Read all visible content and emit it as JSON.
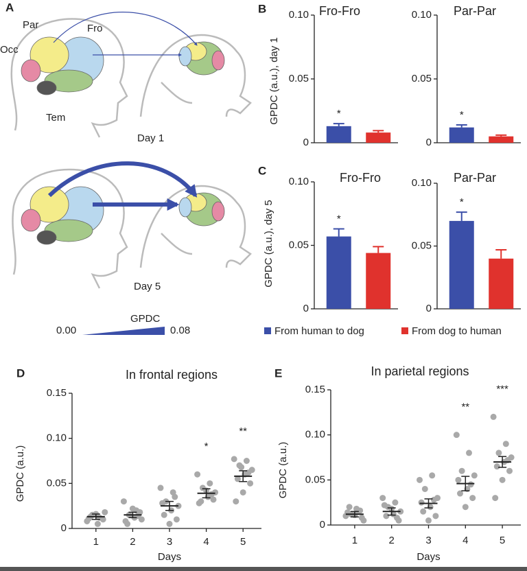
{
  "panel_a": {
    "label": "A",
    "regions": [
      "Par",
      "Fro",
      "Occ",
      "Tem"
    ],
    "day1": "Day 1",
    "day5": "Day 5",
    "scale": {
      "title": "GPDC",
      "min": "0.00",
      "max": "0.08"
    }
  },
  "chart_data": [
    {
      "type": "bar",
      "panel": "B",
      "title": "Fro-Fro",
      "y_label": "GPDC (a.u.), day 1",
      "ylim": [
        0,
        0.1
      ],
      "yticks": [
        0,
        0.05,
        {
          "value": 0.1,
          "label": "0.10"
        }
      ],
      "series": [
        {
          "color": "#3b4fa8",
          "values": [
            0.013
          ],
          "errors": [
            0.002
          ],
          "annotations": [
            "*"
          ]
        },
        {
          "color": "#e0322d",
          "values": [
            0.008
          ],
          "errors": [
            0.0015
          ]
        }
      ]
    },
    {
      "type": "bar",
      "title": "Par-Par",
      "ylim": [
        0,
        0.1
      ],
      "yticks": [
        0,
        0.05,
        {
          "value": 0.1,
          "label": "0.10"
        }
      ],
      "series": [
        {
          "color": "#3b4fa8",
          "values": [
            0.012
          ],
          "errors": [
            0.002
          ],
          "annotations": [
            "*"
          ]
        },
        {
          "color": "#e0322d",
          "values": [
            0.005
          ],
          "errors": [
            0.001
          ]
        }
      ]
    },
    {
      "type": "bar",
      "panel": "C",
      "title": "Fro-Fro",
      "y_label": "GPDC (a.u.), day 5",
      "ylim": [
        0,
        0.1
      ],
      "yticks": [
        0,
        0.05,
        {
          "value": 0.1,
          "label": "0.10"
        }
      ],
      "series": [
        {
          "name": "From human to dog",
          "color": "#3b4fa8",
          "values": [
            0.057
          ],
          "errors": [
            0.006
          ],
          "annotations": [
            "*"
          ]
        },
        {
          "name": "From dog to human",
          "color": "#e0322d",
          "values": [
            0.044
          ],
          "errors": [
            0.005
          ]
        }
      ]
    },
    {
      "type": "bar",
      "title": "Par-Par",
      "ylim": [
        0,
        0.1
      ],
      "yticks": [
        0,
        0.05,
        {
          "value": 0.1,
          "label": "0.10"
        }
      ],
      "series": [
        {
          "color": "#3b4fa8",
          "values": [
            0.07
          ],
          "errors": [
            0.007
          ],
          "annotations": [
            "*"
          ]
        },
        {
          "color": "#e0322d",
          "values": [
            0.04
          ],
          "errors": [
            0.007
          ]
        }
      ]
    },
    {
      "type": "dotplot",
      "panel": "D",
      "title": "In frontal regions",
      "y_label": "GPDC (a.u.)",
      "x_label": "Days",
      "x": [
        1,
        2,
        3,
        4,
        5
      ],
      "xlim": [
        0.5,
        5.5
      ],
      "xticks": [
        1,
        2,
        3,
        4,
        5
      ],
      "ylim": [
        0,
        0.15
      ],
      "yticks": [
        0,
        0.05,
        {
          "value": 0.1,
          "label": "0.10"
        },
        0.15
      ],
      "point_color": "#a9a9a9",
      "points": [
        [
          0.008,
          0.012,
          0.015,
          0.018,
          0.005,
          0.013,
          0.01,
          0.016,
          0.011
        ],
        [
          0.03,
          0.02,
          0.015,
          0.01,
          0.012,
          0.005,
          0.018,
          0.022,
          0.008,
          0.014
        ],
        [
          0.045,
          0.04,
          0.03,
          0.025,
          0.02,
          0.015,
          0.01,
          0.005,
          0.028,
          0.035
        ],
        [
          0.06,
          0.05,
          0.045,
          0.04,
          0.035,
          0.03,
          0.032,
          0.042,
          0.028,
          0.038
        ],
        [
          0.077,
          0.075,
          0.07,
          0.065,
          0.06,
          0.055,
          0.05,
          0.04,
          0.03,
          0.062,
          0.068
        ]
      ],
      "means": [
        0.013,
        0.015,
        0.025,
        0.039,
        0.058
      ],
      "errors": [
        0.003,
        0.003,
        0.005,
        0.005,
        0.006
      ],
      "annotations": [
        null,
        null,
        null,
        "*",
        "**"
      ]
    },
    {
      "type": "dotplot",
      "panel": "E",
      "title": "In parietal regions",
      "y_label": "GPDC (a.u.)",
      "x_label": "Days",
      "x": [
        1,
        2,
        3,
        4,
        5
      ],
      "xlim": [
        0.5,
        5.5
      ],
      "xticks": [
        1,
        2,
        3,
        4,
        5
      ],
      "ylim": [
        0,
        0.15
      ],
      "yticks": [
        0,
        0.05,
        {
          "value": 0.1,
          "label": "0.10"
        },
        0.15
      ],
      "point_color": "#a9a9a9",
      "points": [
        [
          0.01,
          0.015,
          0.012,
          0.005,
          0.018,
          0.02,
          0.008,
          0.011,
          0.014,
          0.016
        ],
        [
          0.03,
          0.025,
          0.02,
          0.015,
          0.012,
          0.01,
          0.005,
          0.018,
          0.022,
          0.008
        ],
        [
          0.05,
          0.055,
          0.04,
          0.03,
          0.02,
          0.015,
          0.01,
          0.005,
          0.025,
          0.028
        ],
        [
          0.1,
          0.08,
          0.06,
          0.055,
          0.04,
          0.035,
          0.03,
          0.02,
          0.05,
          0.045
        ],
        [
          0.12,
          0.09,
          0.08,
          0.075,
          0.07,
          0.065,
          0.06,
          0.05,
          0.03,
          0.072
        ]
      ],
      "means": [
        0.012,
        0.015,
        0.024,
        0.046,
        0.07
      ],
      "errors": [
        0.003,
        0.004,
        0.005,
        0.008,
        0.006
      ],
      "annotations": [
        null,
        null,
        null,
        "**",
        "***"
      ]
    }
  ]
}
